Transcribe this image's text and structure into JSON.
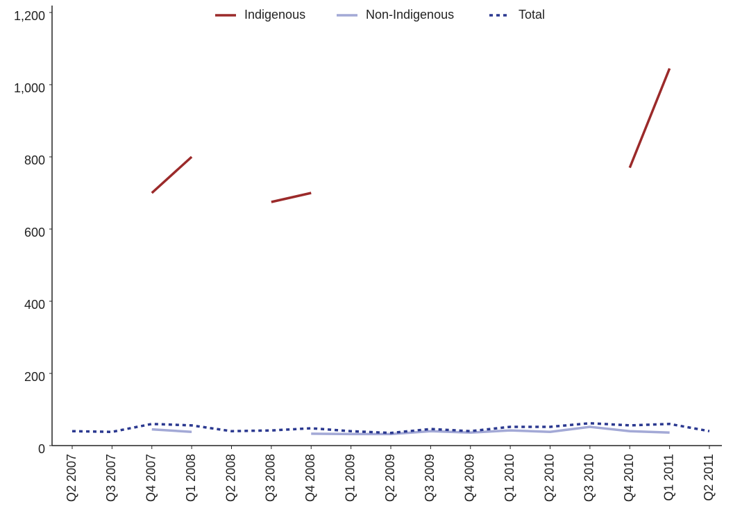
{
  "chart_data": {
    "type": "line",
    "categories": [
      "Q2 2007",
      "Q3 2007",
      "Q4 2007",
      "Q1 2008",
      "Q2 2008",
      "Q3 2008",
      "Q4 2008",
      "Q1 2009",
      "Q2 2009",
      "Q3 2009",
      "Q4 2009",
      "Q1 2010",
      "Q2 2010",
      "Q3 2010",
      "Q4 2010",
      "Q1 2011",
      "Q2 2011"
    ],
    "series": [
      {
        "name": "Indigenous",
        "color": "#9b2a2a",
        "dash": "solid",
        "values": [
          null,
          null,
          700,
          800,
          null,
          675,
          700,
          null,
          null,
          null,
          null,
          null,
          null,
          null,
          770,
          1045,
          null
        ]
      },
      {
        "name": "Non-Indigenous",
        "color": "#a3a9d6",
        "dash": "solid",
        "values": [
          null,
          null,
          45,
          38,
          null,
          null,
          33,
          32,
          32,
          40,
          36,
          42,
          38,
          52,
          40,
          36,
          null
        ]
      },
      {
        "name": "Total",
        "color": "#2b3990",
        "dash": "dotted",
        "values": [
          40,
          38,
          60,
          56,
          40,
          42,
          48,
          40,
          35,
          46,
          40,
          52,
          52,
          62,
          56,
          60,
          40
        ]
      }
    ],
    "ylim": [
      0,
      1200
    ],
    "yticks": [
      0,
      200,
      400,
      600,
      800,
      {
        "value": 1000,
        "label": "1,000"
      },
      {
        "value": 1200,
        "label": "1,200"
      }
    ],
    "legend": "top"
  }
}
